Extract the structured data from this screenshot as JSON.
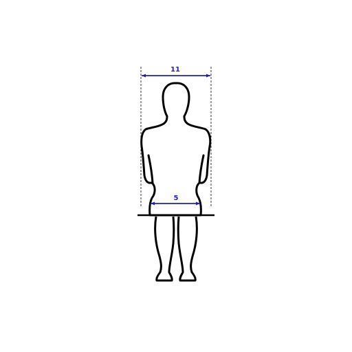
{
  "diagram": {
    "shoulder_width_label": "11",
    "hip_width_label": "5",
    "colors": {
      "dimension": "#1f1fb4",
      "outline": "#000000",
      "guide": "#000000",
      "background": "#ffffff"
    }
  }
}
